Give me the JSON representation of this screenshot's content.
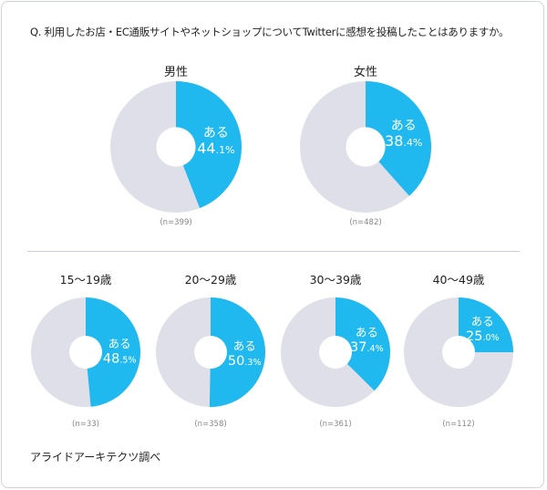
{
  "question": "Q. 利用したお店・EC通販サイトやネットショップについてTwitterに感想を投稿したことはありますか。",
  "source": "アライドアーキテクツ調べ",
  "colors": {
    "yes": "#20b9ef",
    "other": "#dfdfe9",
    "label": "#ffffff"
  },
  "chart_data": [
    {
      "type": "pie",
      "title": "男性",
      "n": "(n=399)",
      "slice_label": "ある",
      "value": 44.1,
      "int": "44",
      "dec": ".1%"
    },
    {
      "type": "pie",
      "title": "女性",
      "n": "(n=482)",
      "slice_label": "ある",
      "value": 38.4,
      "int": "38",
      "dec": ".4%"
    },
    {
      "type": "pie",
      "title": "15〜19歳",
      "n": "(n=33)",
      "slice_label": "ある",
      "value": 48.5,
      "int": "48",
      "dec": ".5%"
    },
    {
      "type": "pie",
      "title": "20〜29歳",
      "n": "(n=358)",
      "slice_label": "ある",
      "value": 50.3,
      "int": "50",
      "dec": ".3%"
    },
    {
      "type": "pie",
      "title": "30〜39歳",
      "n": "(n=361)",
      "slice_label": "ある",
      "value": 37.4,
      "int": "37",
      "dec": ".4%"
    },
    {
      "type": "pie",
      "title": "40〜49歳",
      "n": "(n=112)",
      "slice_label": "ある",
      "value": 25.0,
      "int": "25",
      "dec": ".0%"
    }
  ]
}
